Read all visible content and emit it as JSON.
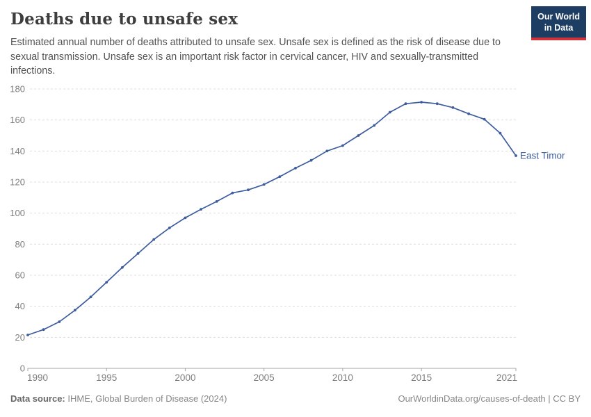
{
  "header": {
    "title": "Deaths due to unsafe sex",
    "subtitle": "Estimated annual number of deaths attributed to unsafe sex. Unsafe sex is defined as the risk of disease due to sexual transmission. Unsafe sex is an important risk factor in cervical cancer, HIV and sexually-transmitted infections.",
    "logo": {
      "line1": "Our World",
      "line2": "in Data",
      "bg_color": "#1d3d63",
      "accent_color": "#d13239"
    }
  },
  "chart_data": {
    "type": "line",
    "title": "Deaths due to unsafe sex",
    "entity_label": "East Timor",
    "x": [
      1990,
      1991,
      1992,
      1993,
      1994,
      1995,
      1996,
      1997,
      1998,
      1999,
      2000,
      2001,
      2002,
      2003,
      2004,
      2005,
      2006,
      2007,
      2008,
      2009,
      2010,
      2011,
      2012,
      2013,
      2014,
      2015,
      2016,
      2017,
      2018,
      2019,
      2020,
      2021
    ],
    "series": [
      {
        "name": "East Timor",
        "values": [
          21.5,
          25,
          30,
          37.5,
          46,
          55.5,
          65,
          74,
          83,
          90.5,
          97,
          102.5,
          107.5,
          113,
          115,
          118.5,
          123.5,
          129,
          134,
          140,
          143.5,
          150,
          156.5,
          165,
          170.5,
          171.5,
          170.5,
          168,
          164,
          160.5,
          151.5,
          137
        ]
      }
    ],
    "ylim": [
      0,
      180
    ],
    "yticks": [
      0,
      20,
      40,
      60,
      80,
      100,
      120,
      140,
      160,
      180
    ],
    "xticks": [
      1990,
      1995,
      2000,
      2005,
      2010,
      2015,
      2021
    ],
    "grid": true,
    "legend_position": "end-of-line-label",
    "line_color": "#3d5c9e",
    "gridline_color": "#dcdcdc",
    "axis_line_color": "#a5a5a5",
    "axis_text_color": "#7d7d7d"
  },
  "footer": {
    "source_label": "Data source:",
    "source_value": "IHME, Global Burden of Disease (2024)",
    "credit": "OurWorldinData.org/causes-of-death | CC BY"
  }
}
